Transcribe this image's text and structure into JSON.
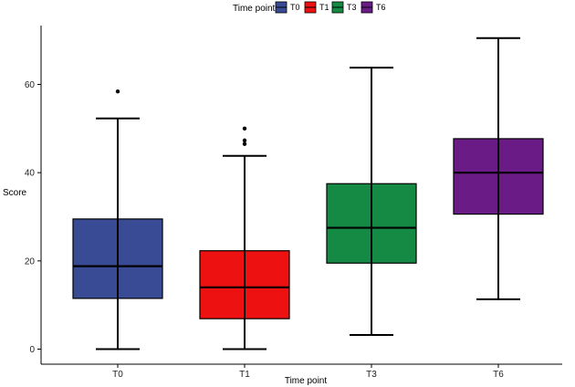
{
  "chart_data": {
    "type": "box",
    "xlabel": "Time point",
    "ylabel": "Score",
    "ylim": [
      -3.5,
      73.5
    ],
    "yticks": [
      0,
      20,
      40,
      60
    ],
    "legend": {
      "title": "Time point",
      "position": "top",
      "entries": [
        "T0",
        "T1",
        "T3",
        "T6"
      ]
    },
    "series": [
      {
        "name": "T0",
        "color": "#3A4B96",
        "whisker_low": 0,
        "q1": 11.5,
        "median": 18.8,
        "q3": 29.5,
        "whisker_high": 52.3,
        "outliers": [
          58.4
        ]
      },
      {
        "name": "T1",
        "color": "#EE1111",
        "whisker_low": 0,
        "q1": 6.9,
        "median": 14.0,
        "q3": 22.3,
        "whisker_high": 43.8,
        "outliers": [
          46.5,
          47.3,
          50.0
        ]
      },
      {
        "name": "T3",
        "color": "#148A45",
        "whisker_low": 3.2,
        "q1": 19.5,
        "median": 27.5,
        "q3": 37.5,
        "whisker_high": 63.8,
        "outliers": []
      },
      {
        "name": "T6",
        "color": "#6A1B86",
        "whisker_low": 11.3,
        "q1": 30.6,
        "median": 40.0,
        "q3": 47.7,
        "whisker_high": 70.5,
        "outliers": []
      }
    ],
    "grid": false
  }
}
